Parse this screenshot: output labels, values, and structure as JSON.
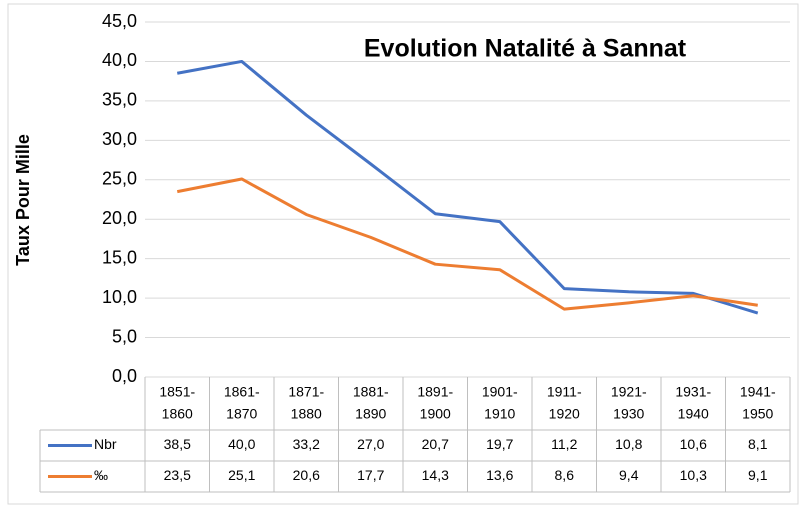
{
  "chart_data": {
    "type": "line",
    "title": "Evolution  Natalité à Sannat",
    "y_label": "Taux Pour Mille",
    "categories": [
      [
        "1851-",
        "1860"
      ],
      [
        "1861-",
        "1870"
      ],
      [
        "1871-",
        "1880"
      ],
      [
        "1881-",
        "1890"
      ],
      [
        "1891-",
        "1900"
      ],
      [
        "1901-",
        "1910"
      ],
      [
        "1911-",
        "1920"
      ],
      [
        "1921-",
        "1930"
      ],
      [
        "1931-",
        "1940"
      ],
      [
        "1941-",
        "1950"
      ]
    ],
    "series": [
      {
        "name": "Nbr",
        "color": "#4472c4",
        "values": [
          38.5,
          40.0,
          33.2,
          27.0,
          20.7,
          19.7,
          11.2,
          10.8,
          10.6,
          8.1
        ],
        "value_labels": [
          "38,5",
          "40,0",
          "33,2",
          "27,0",
          "20,7",
          "19,7",
          "11,2",
          "10,8",
          "10,6",
          "8,1"
        ]
      },
      {
        "name": "‰",
        "color": "#ed7d31",
        "values": [
          23.5,
          25.1,
          20.6,
          17.7,
          14.3,
          13.6,
          8.6,
          9.4,
          10.3,
          9.1
        ],
        "value_labels": [
          "23,5",
          "25,1",
          "20,6",
          "17,7",
          "14,3",
          "13,6",
          "8,6",
          "9,4",
          "10,3",
          "9,1"
        ]
      }
    ],
    "ylim": [
      0,
      45
    ],
    "yticks": [
      {
        "value": 0,
        "label": "0,0"
      },
      {
        "value": 5,
        "label": "5,0"
      },
      {
        "value": 10,
        "label": "10,0"
      },
      {
        "value": 15,
        "label": "15,0"
      },
      {
        "value": 20,
        "label": "20,0"
      },
      {
        "value": 25,
        "label": "25,0"
      },
      {
        "value": 30,
        "label": "30,0"
      },
      {
        "value": 35,
        "label": "35,0"
      },
      {
        "value": 40,
        "label": "40,0"
      },
      {
        "value": 45,
        "label": "45,0"
      }
    ],
    "grid": true
  }
}
